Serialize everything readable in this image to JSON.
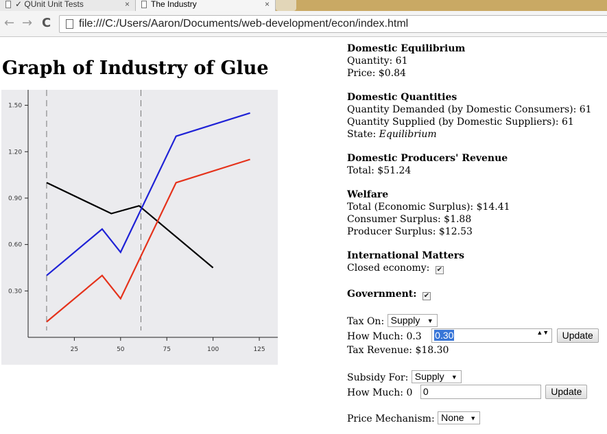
{
  "browser": {
    "tabs": [
      {
        "title": "✓ QUnit Unit Tests",
        "active": false
      },
      {
        "title": "The Industry",
        "active": true
      }
    ],
    "close_glyph": "×",
    "back_icon": "arrow-left-icon",
    "forward_icon": "arrow-right-icon",
    "reload_icon": "reload-icon",
    "back_glyph": "←",
    "forward_glyph": "→",
    "reload_glyph": "C",
    "url": "file:///C:/Users/Aaron/Documents/web-development/econ/index.html"
  },
  "page": {
    "title": "Graph of Industry of Glue"
  },
  "chart_data": {
    "type": "line",
    "title": "",
    "xlabel": "",
    "ylabel": "",
    "xlim": [
      0,
      135
    ],
    "ylim": [
      0,
      1.6
    ],
    "x_ticks": [
      25,
      50,
      75,
      100,
      125
    ],
    "y_ticks": [
      0.3,
      0.6,
      0.9,
      1.2,
      1.5
    ],
    "y_tick_labels": [
      "0.30",
      "0.60",
      "0.90",
      "1.20",
      "1.50"
    ],
    "grid": false,
    "legend": "none",
    "vertical_lines": [
      10,
      61
    ],
    "series": [
      {
        "color": "#000000",
        "points": [
          [
            10,
            1.0
          ],
          [
            45,
            0.8
          ],
          [
            60,
            0.85
          ],
          [
            100,
            0.45
          ]
        ]
      },
      {
        "color": "#1f22d6",
        "points": [
          [
            10,
            0.4
          ],
          [
            40,
            0.7
          ],
          [
            50,
            0.55
          ],
          [
            80,
            1.3
          ],
          [
            120,
            1.45
          ]
        ]
      },
      {
        "color": "#e5321b",
        "points": [
          [
            10,
            0.1
          ],
          [
            40,
            0.4
          ],
          [
            50,
            0.25
          ],
          [
            80,
            1.0
          ],
          [
            120,
            1.15
          ]
        ]
      }
    ]
  },
  "info": {
    "domestic_equilibrium": {
      "heading": "Domestic Equilibrium",
      "quantity": "Quantity: 61",
      "price": "Price: $0.84"
    },
    "domestic_quantities": {
      "heading": "Domestic Quantities",
      "demanded": "Quantity Demanded (by Domestic Consumers): 61",
      "supplied": "Quantity Supplied (by Domestic Suppliers): 61",
      "state_label": "State:",
      "state_value": "Equilibrium"
    },
    "revenue": {
      "heading": "Domestic Producers' Revenue",
      "total": "Total: $51.24"
    },
    "welfare": {
      "heading": "Welfare",
      "total": "Total (Economic Surplus): $14.41",
      "consumer": "Consumer Surplus: $1.88",
      "producer": "Producer Surplus: $12.53"
    },
    "international": {
      "heading": "International Matters",
      "closed_label": "Closed economy:",
      "closed_checked": true
    },
    "government": {
      "heading": "Government:",
      "checked": true,
      "tax_on_label": "Tax On:",
      "tax_on_value": "Supply",
      "how_much_label": "How Much: 0.3",
      "how_much_value": "0.30",
      "update_label": "Update",
      "tax_revenue": "Tax Revenue: $18.30"
    },
    "subsidy": {
      "for_label": "Subsidy For:",
      "for_value": "Supply",
      "how_much_label": "How Much: 0",
      "how_much_value": "0",
      "update_label": "Update"
    },
    "price_mechanism": {
      "label": "Price Mechanism:",
      "value": "None"
    },
    "check_glyph": "✔",
    "select_arrow": "▼",
    "spin_glyph": "▲▼"
  }
}
